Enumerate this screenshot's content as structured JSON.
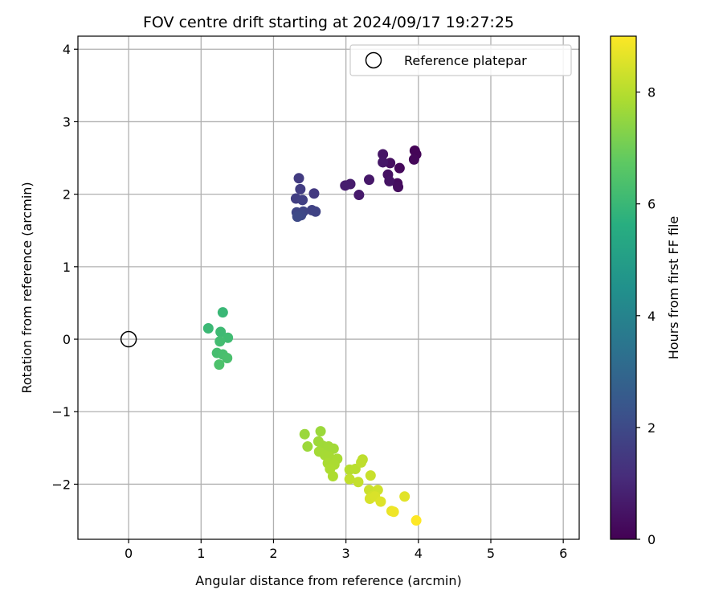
{
  "chart_data": {
    "type": "scatter",
    "title": "FOV centre drift starting at 2024/09/17 19:27:25",
    "xlabel": "Angular distance from reference (arcmin)",
    "ylabel": "Rotation from reference (arcmin)",
    "xlim": [
      -0.7,
      6.22
    ],
    "ylim": [
      -2.76,
      4.18
    ],
    "xticks": [
      0,
      1,
      2,
      3,
      4,
      5,
      6
    ],
    "yticks": [
      -2,
      -1,
      0,
      1,
      2,
      3,
      4
    ],
    "grid": true,
    "colormap": "viridis",
    "colorbar": {
      "label": "Hours from first FF file",
      "range": [
        0,
        9.0
      ],
      "ticks": [
        0,
        2,
        4,
        6,
        8
      ]
    },
    "legend": {
      "position": "upper-right",
      "entries": [
        "Reference platepar"
      ]
    },
    "reference_point": {
      "x": 0,
      "y": 0,
      "label": "Reference platepar"
    },
    "points": [
      {
        "x": 3.95,
        "y": 2.6,
        "h": 0.05
      },
      {
        "x": 3.97,
        "y": 2.55,
        "h": 0.1
      },
      {
        "x": 3.94,
        "y": 2.48,
        "h": 0.15
      },
      {
        "x": 3.74,
        "y": 2.36,
        "h": 0.2
      },
      {
        "x": 3.71,
        "y": 2.15,
        "h": 0.25
      },
      {
        "x": 3.72,
        "y": 2.1,
        "h": 0.3
      },
      {
        "x": 3.61,
        "y": 2.43,
        "h": 0.35
      },
      {
        "x": 3.58,
        "y": 2.27,
        "h": 0.4
      },
      {
        "x": 3.6,
        "y": 2.18,
        "h": 0.45
      },
      {
        "x": 3.51,
        "y": 2.55,
        "h": 0.5
      },
      {
        "x": 3.51,
        "y": 2.44,
        "h": 0.55
      },
      {
        "x": 3.32,
        "y": 2.2,
        "h": 0.6
      },
      {
        "x": 3.18,
        "y": 1.99,
        "h": 0.65
      },
      {
        "x": 3.06,
        "y": 2.14,
        "h": 0.7
      },
      {
        "x": 2.99,
        "y": 2.12,
        "h": 0.75
      },
      {
        "x": 2.56,
        "y": 2.01,
        "h": 1.5
      },
      {
        "x": 2.35,
        "y": 2.22,
        "h": 1.55
      },
      {
        "x": 2.37,
        "y": 2.07,
        "h": 1.6
      },
      {
        "x": 2.31,
        "y": 1.94,
        "h": 1.65
      },
      {
        "x": 2.4,
        "y": 1.92,
        "h": 1.7
      },
      {
        "x": 2.53,
        "y": 1.78,
        "h": 1.75
      },
      {
        "x": 2.58,
        "y": 1.76,
        "h": 1.8
      },
      {
        "x": 2.41,
        "y": 1.76,
        "h": 1.85
      },
      {
        "x": 2.32,
        "y": 1.75,
        "h": 1.9
      },
      {
        "x": 2.38,
        "y": 1.71,
        "h": 1.95
      },
      {
        "x": 2.33,
        "y": 1.69,
        "h": 2.0
      },
      {
        "x": 1.3,
        "y": 0.37,
        "h": 6.0
      },
      {
        "x": 1.1,
        "y": 0.15,
        "h": 6.05
      },
      {
        "x": 1.27,
        "y": 0.1,
        "h": 6.1
      },
      {
        "x": 1.37,
        "y": 0.02,
        "h": 6.15
      },
      {
        "x": 1.26,
        "y": -0.03,
        "h": 6.2
      },
      {
        "x": 1.22,
        "y": -0.19,
        "h": 6.25
      },
      {
        "x": 1.3,
        "y": -0.21,
        "h": 6.3
      },
      {
        "x": 1.36,
        "y": -0.26,
        "h": 6.35
      },
      {
        "x": 1.25,
        "y": -0.35,
        "h": 6.4
      },
      {
        "x": 2.43,
        "y": -1.31,
        "h": 7.6
      },
      {
        "x": 2.65,
        "y": -1.27,
        "h": 7.62
      },
      {
        "x": 2.47,
        "y": -1.48,
        "h": 7.64
      },
      {
        "x": 2.62,
        "y": -1.41,
        "h": 7.66
      },
      {
        "x": 2.68,
        "y": -1.47,
        "h": 7.68
      },
      {
        "x": 2.76,
        "y": -1.48,
        "h": 7.7
      },
      {
        "x": 2.83,
        "y": -1.51,
        "h": 7.72
      },
      {
        "x": 2.63,
        "y": -1.55,
        "h": 7.74
      },
      {
        "x": 2.71,
        "y": -1.6,
        "h": 7.76
      },
      {
        "x": 2.77,
        "y": -1.62,
        "h": 7.78
      },
      {
        "x": 2.88,
        "y": -1.65,
        "h": 7.8
      },
      {
        "x": 2.75,
        "y": -1.71,
        "h": 7.82
      },
      {
        "x": 2.84,
        "y": -1.73,
        "h": 7.84
      },
      {
        "x": 2.78,
        "y": -1.79,
        "h": 7.86
      },
      {
        "x": 2.82,
        "y": -1.89,
        "h": 7.88
      },
      {
        "x": 3.05,
        "y": -1.8,
        "h": 8.0
      },
      {
        "x": 3.13,
        "y": -1.79,
        "h": 8.05
      },
      {
        "x": 3.23,
        "y": -1.66,
        "h": 8.1
      },
      {
        "x": 3.21,
        "y": -1.7,
        "h": 8.12
      },
      {
        "x": 3.05,
        "y": -1.93,
        "h": 8.15
      },
      {
        "x": 3.17,
        "y": -1.97,
        "h": 8.2
      },
      {
        "x": 3.34,
        "y": -1.88,
        "h": 8.25
      },
      {
        "x": 3.32,
        "y": -2.08,
        "h": 8.3
      },
      {
        "x": 3.44,
        "y": -2.08,
        "h": 8.35
      },
      {
        "x": 3.37,
        "y": -2.16,
        "h": 8.4
      },
      {
        "x": 3.33,
        "y": -2.2,
        "h": 8.45
      },
      {
        "x": 3.4,
        "y": -2.17,
        "h": 8.5
      },
      {
        "x": 3.48,
        "y": -2.24,
        "h": 8.55
      },
      {
        "x": 3.81,
        "y": -2.17,
        "h": 8.6
      },
      {
        "x": 3.63,
        "y": -2.37,
        "h": 8.7
      },
      {
        "x": 3.66,
        "y": -2.38,
        "h": 8.8
      },
      {
        "x": 3.97,
        "y": -2.5,
        "h": 9.0
      }
    ]
  }
}
